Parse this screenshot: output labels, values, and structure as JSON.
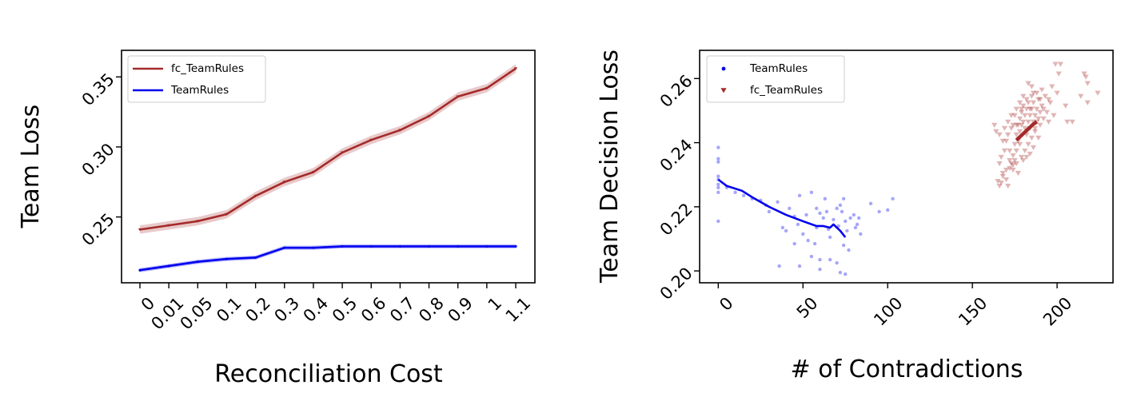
{
  "chart_data": [
    {
      "type": "line",
      "xlabel": "Reconciliation Cost",
      "ylabel": "Team Loss",
      "categories": [
        "0",
        "0.01",
        "0.05",
        "0.1",
        "0.2",
        "0.3",
        "0.4",
        "0.5",
        "0.6",
        "0.7",
        "0.8",
        "0.9",
        "1",
        "1.1"
      ],
      "ylim": [
        0.203,
        0.369
      ],
      "yticks": [
        "0.25",
        "0.30",
        "0.35"
      ],
      "ytick_values": [
        0.25,
        0.3,
        0.35
      ],
      "legend_position": "upper-left",
      "series": [
        {
          "name": "fc_TeamRules",
          "color": "#a52a2a",
          "values": [
            0.241,
            0.244,
            0.247,
            0.252,
            0.265,
            0.275,
            0.282,
            0.296,
            0.305,
            0.312,
            0.322,
            0.336,
            0.342,
            0.356
          ],
          "band": 0.003
        },
        {
          "name": "TeamRules",
          "color": "#0000ee",
          "values": [
            0.212,
            0.215,
            0.218,
            0.22,
            0.221,
            0.228,
            0.228,
            0.229,
            0.229,
            0.229,
            0.229,
            0.229,
            0.229,
            0.229
          ],
          "band": 0.0015
        }
      ]
    },
    {
      "type": "scatter",
      "xlabel": "# of Contradictions",
      "ylabel": "Team Decision Loss",
      "xlim": [
        -11,
        233
      ],
      "ylim": [
        0.1963,
        0.2688
      ],
      "xticks": [
        "0",
        "50",
        "100",
        "150",
        "200"
      ],
      "xtick_values": [
        0,
        50,
        100,
        150,
        200
      ],
      "yticks": [
        "0.20",
        "0.22",
        "0.24",
        "0.26"
      ],
      "ytick_values": [
        0.2,
        0.22,
        0.24,
        0.26
      ],
      "legend_position": "upper-left",
      "series": [
        {
          "name": "TeamRules",
          "marker": "circle",
          "color": "#0000ee",
          "points": [
            [
              0,
              0.2385
            ],
            [
              0,
              0.235
            ],
            [
              0,
              0.234
            ],
            [
              0,
              0.2295
            ],
            [
              0,
              0.2285
            ],
            [
              0,
              0.227
            ],
            [
              0,
              0.226
            ],
            [
              0,
              0.2245
            ],
            [
              0,
              0.2155
            ],
            [
              5,
              0.226
            ],
            [
              10,
              0.2245
            ],
            [
              15,
              0.2235
            ],
            [
              20,
              0.2225
            ],
            [
              25,
              0.222
            ],
            [
              28,
              0.2205
            ],
            [
              30,
              0.2185
            ],
            [
              35,
              0.2215
            ],
            [
              38,
              0.2135
            ],
            [
              40,
              0.2125
            ],
            [
              45,
              0.217
            ],
            [
              47,
              0.2145
            ],
            [
              48,
              0.2235
            ],
            [
              50,
              0.2115
            ],
            [
              52,
              0.2175
            ],
            [
              55,
              0.2245
            ],
            [
              57,
              0.2085
            ],
            [
              58,
              0.2195
            ],
            [
              60,
              0.218
            ],
            [
              62,
              0.2165
            ],
            [
              63,
              0.2225
            ],
            [
              65,
              0.213
            ],
            [
              66,
              0.2105
            ],
            [
              68,
              0.216
            ],
            [
              70,
              0.2195
            ],
            [
              71,
              0.214
            ],
            [
              72,
              0.2205
            ],
            [
              73,
              0.2185
            ],
            [
              74,
              0.2225
            ],
            [
              75,
              0.2155
            ],
            [
              76,
              0.2125
            ],
            [
              77,
              0.2065
            ],
            [
              78,
              0.2165
            ],
            [
              80,
              0.2175
            ],
            [
              81,
              0.2135
            ],
            [
              82,
              0.2145
            ],
            [
              83,
              0.2165
            ],
            [
              84,
              0.2115
            ],
            [
              90,
              0.221
            ],
            [
              95,
              0.2185
            ],
            [
              100,
              0.219
            ],
            [
              103,
              0.2225
            ],
            [
              36,
              0.2015
            ],
            [
              48,
              0.2015
            ],
            [
              55,
              0.2045
            ],
            [
              60,
              0.2035
            ],
            [
              66,
              0.2035
            ],
            [
              70,
              0.2025
            ],
            [
              72,
              0.1995
            ],
            [
              75,
              0.199
            ],
            [
              74,
              0.208
            ],
            [
              64,
              0.2185
            ],
            [
              45,
              0.2085
            ],
            [
              42,
              0.2195
            ],
            [
              53,
              0.2095
            ],
            [
              58,
              0.2135
            ],
            [
              60,
              0.2005
            ]
          ],
          "trend": [
            [
              0,
              0.2285
            ],
            [
              5,
              0.2265
            ],
            [
              14,
              0.225
            ],
            [
              20,
              0.223
            ],
            [
              30,
              0.22
            ],
            [
              40,
              0.2175
            ],
            [
              50,
              0.2155
            ],
            [
              58,
              0.214
            ],
            [
              62,
              0.214
            ],
            [
              66,
              0.2135
            ],
            [
              68,
              0.2145
            ],
            [
              72,
              0.2125
            ],
            [
              75,
              0.2105
            ]
          ]
        },
        {
          "name": "fc_TeamRules",
          "marker": "triangle-down",
          "color": "#a52a2a",
          "points": [
            [
              165,
              0.228
            ],
            [
              166,
              0.2265
            ],
            [
              167,
              0.2275
            ],
            [
              168,
              0.2295
            ],
            [
              168,
              0.2305
            ],
            [
              170,
              0.2315
            ],
            [
              170,
              0.2285
            ],
            [
              171,
              0.2265
            ],
            [
              172,
              0.232
            ],
            [
              172,
              0.2345
            ],
            [
              173,
              0.2335
            ],
            [
              174,
              0.233
            ],
            [
              174,
              0.236
            ],
            [
              175,
              0.2345
            ],
            [
              175,
              0.2395
            ],
            [
              176,
              0.2375
            ],
            [
              176,
              0.2425
            ],
            [
              177,
              0.2405
            ],
            [
              177,
              0.2455
            ],
            [
              178,
              0.2435
            ],
            [
              178,
              0.2475
            ],
            [
              179,
              0.2455
            ],
            [
              179,
              0.2495
            ],
            [
              180,
              0.2465
            ],
            [
              180,
              0.2515
            ],
            [
              181,
              0.2445
            ],
            [
              181,
              0.2485
            ],
            [
              182,
              0.2425
            ],
            [
              182,
              0.2505
            ],
            [
              183,
              0.2465
            ],
            [
              183,
              0.2525
            ],
            [
              184,
              0.2445
            ],
            [
              184,
              0.2485
            ],
            [
              185,
              0.2505
            ],
            [
              185,
              0.2545
            ],
            [
              186,
              0.2465
            ],
            [
              186,
              0.2525
            ],
            [
              187,
              0.2485
            ],
            [
              187,
              0.2445
            ],
            [
              188,
              0.2505
            ],
            [
              188,
              0.2555
            ],
            [
              189,
              0.2475
            ],
            [
              189,
              0.2535
            ],
            [
              190,
              0.2495
            ],
            [
              190,
              0.2455
            ],
            [
              191,
              0.2515
            ],
            [
              192,
              0.2475
            ],
            [
              193,
              0.2545
            ],
            [
              194,
              0.2495
            ],
            [
              195,
              0.2465
            ],
            [
              196,
              0.2525
            ],
            [
              197,
              0.2575
            ],
            [
              198,
              0.2485
            ],
            [
              199,
              0.2645
            ],
            [
              200,
              0.2555
            ],
            [
              201,
              0.2615
            ],
            [
              202,
              0.2645
            ],
            [
              205,
              0.2515
            ],
            [
              206,
              0.2465
            ],
            [
              209,
              0.2465
            ],
            [
              214,
              0.2545
            ],
            [
              216,
              0.2615
            ],
            [
              217,
              0.2605
            ],
            [
              218,
              0.2585
            ],
            [
              218,
              0.2525
            ],
            [
              224,
              0.2555
            ],
            [
              163,
              0.2455
            ],
            [
              164,
              0.2435
            ],
            [
              166,
              0.2425
            ],
            [
              168,
              0.2405
            ],
            [
              169,
              0.2445
            ],
            [
              171,
              0.2465
            ],
            [
              173,
              0.2485
            ],
            [
              174,
              0.2455
            ],
            [
              176,
              0.2505
            ],
            [
              178,
              0.2525
            ],
            [
              180,
              0.2545
            ],
            [
              183,
              0.2585
            ],
            [
              185,
              0.2575
            ],
            [
              188,
              0.2465
            ],
            [
              191,
              0.2565
            ],
            [
              195,
              0.2535
            ],
            [
              178,
              0.2395
            ],
            [
              179,
              0.2355
            ],
            [
              181,
              0.2375
            ],
            [
              183,
              0.2395
            ],
            [
              185,
              0.2415
            ],
            [
              187,
              0.2435
            ],
            [
              189,
              0.2415
            ],
            [
              186,
              0.2385
            ],
            [
              184,
              0.2365
            ],
            [
              182,
              0.2355
            ],
            [
              180,
              0.2345
            ],
            [
              176,
              0.2335
            ],
            [
              174,
              0.2315
            ],
            [
              177,
              0.2305
            ],
            [
              172,
              0.2375
            ],
            [
              170,
              0.2405
            ],
            [
              169,
              0.2375
            ],
            [
              167,
              0.2355
            ],
            [
              166,
              0.2335
            ],
            [
              190,
              0.2535
            ],
            [
              192,
              0.2505
            ],
            [
              186,
              0.2555
            ],
            [
              184,
              0.2505
            ],
            [
              182,
              0.2535
            ],
            [
              179,
              0.2505
            ],
            [
              176,
              0.2455
            ],
            [
              175,
              0.2485
            ],
            [
              173,
              0.2445
            ],
            [
              171,
              0.2425
            ]
          ],
          "trend": [
            [
              176,
              0.2408
            ],
            [
              178,
              0.2418
            ],
            [
              180,
              0.2428
            ],
            [
              182,
              0.2438
            ],
            [
              184,
              0.2448
            ],
            [
              186,
              0.2458
            ],
            [
              188,
              0.2465
            ]
          ]
        }
      ]
    }
  ]
}
